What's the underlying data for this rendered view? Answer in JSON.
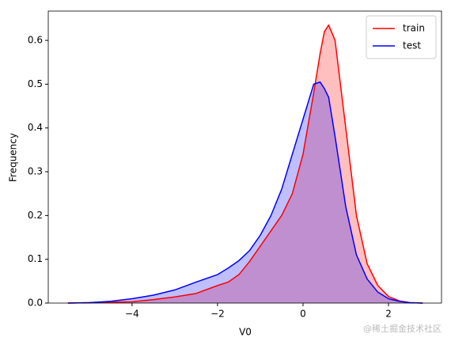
{
  "chart_data": {
    "type": "kde",
    "xlabel": "V0",
    "ylabel": "Frequency",
    "x": [
      -5.5,
      -5,
      -4.5,
      -4,
      -3.5,
      -3,
      -2.5,
      -2,
      -1.75,
      -1.5,
      -1.25,
      -1,
      -0.75,
      -0.5,
      -0.25,
      0,
      0.25,
      0.4,
      0.5,
      0.6,
      0.75,
      1,
      1.25,
      1.5,
      1.75,
      2,
      2.25,
      2.5,
      2.8
    ],
    "series": [
      {
        "name": "train",
        "color": "#ff0000",
        "values": [
          0,
          0.001,
          0.002,
          0.003,
          0.008,
          0.014,
          0.022,
          0.04,
          0.048,
          0.065,
          0.095,
          0.13,
          0.165,
          0.2,
          0.25,
          0.34,
          0.48,
          0.57,
          0.62,
          0.635,
          0.6,
          0.4,
          0.2,
          0.09,
          0.04,
          0.015,
          0.005,
          0.001,
          0
        ]
      },
      {
        "name": "test",
        "color": "#0000ff",
        "values": [
          0,
          0.001,
          0.004,
          0.01,
          0.018,
          0.03,
          0.048,
          0.065,
          0.08,
          0.097,
          0.12,
          0.155,
          0.2,
          0.26,
          0.34,
          0.42,
          0.5,
          0.505,
          0.49,
          0.47,
          0.38,
          0.22,
          0.11,
          0.055,
          0.025,
          0.01,
          0.004,
          0.001,
          0
        ]
      }
    ],
    "xlim": [
      -5.96,
      3.24
    ],
    "ylim": [
      0,
      0.667
    ],
    "xticks": [
      {
        "value": -4,
        "label": "−4"
      },
      {
        "value": -2,
        "label": "−2"
      },
      0,
      2
    ],
    "yticks": [
      {
        "value": 0,
        "label": "0.0"
      },
      0.1,
      0.2,
      0.3,
      0.4,
      0.5,
      0.6
    ],
    "legend": "upper right",
    "watermark": "@稀土掘金技术社区"
  }
}
